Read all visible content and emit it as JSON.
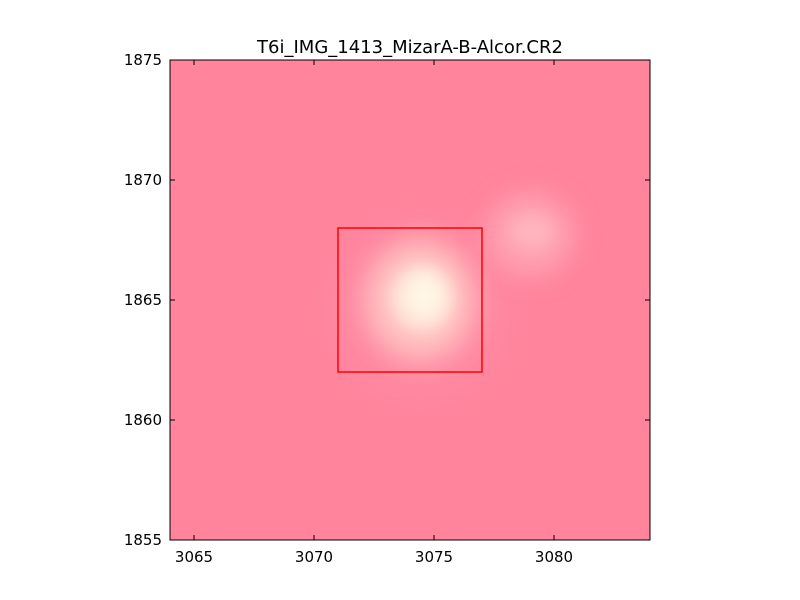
{
  "chart_data": {
    "type": "heatmap",
    "title": "T6i_IMG_1413_MizarA-B-Alcor.CR2",
    "xlabel": "",
    "ylabel": "",
    "xlim": [
      3064,
      3084
    ],
    "ylim": [
      1855,
      1875
    ],
    "x_ticks": [
      3065,
      3070,
      3075,
      3080
    ],
    "y_ticks": [
      1855,
      1860,
      1865,
      1870,
      1875
    ],
    "x_tick_labels": [
      "3065",
      "3070",
      "3075",
      "3080"
    ],
    "y_tick_labels": [
      "1855",
      "1860",
      "1865",
      "1870",
      "1875"
    ],
    "grid": false,
    "background_color": "#ff849c",
    "annotation_rectangle": {
      "x": [
        3071,
        3077
      ],
      "y": [
        1862,
        1868
      ],
      "color": "#ff0000"
    },
    "bright_spots": [
      {
        "x": 3074.7,
        "y": 1865.1,
        "color": "#fff5e0"
      },
      {
        "x": 3079.3,
        "y": 1867.7,
        "color": "#ffb0b8"
      }
    ]
  }
}
